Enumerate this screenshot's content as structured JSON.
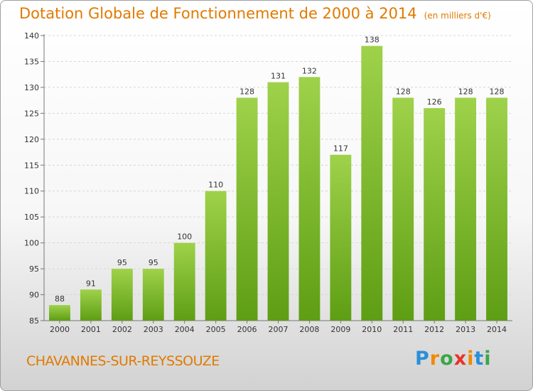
{
  "title": "Dotation Globale de Fonctionnement de 2000 à 2014",
  "unit": "(en milliers d'€)",
  "town": "CHAVANNES-SUR-REYSSOUZE",
  "logo": {
    "letters": [
      "P",
      "r",
      "o",
      "x",
      "i",
      "t",
      "i"
    ],
    "colors": [
      "#2a8fd8",
      "#f08a00",
      "#3aa64a",
      "#e8332a",
      "#f08a00",
      "#2a8fd8",
      "#3aa64a"
    ]
  },
  "colors": {
    "bar_light": "#9ed24a",
    "bar_dark": "#5e9e14",
    "title": "#e07a00"
  },
  "chart_data": {
    "type": "bar",
    "title": "Dotation Globale de Fonctionnement de 2000 à 2014",
    "subtitle": "(en milliers d'€)",
    "xlabel": "",
    "ylabel": "",
    "categories": [
      "2000",
      "2001",
      "2002",
      "2003",
      "2004",
      "2005",
      "2006",
      "2007",
      "2008",
      "2009",
      "2010",
      "2011",
      "2012",
      "2013",
      "2014"
    ],
    "values": [
      88,
      91,
      95,
      95,
      100,
      110,
      128,
      131,
      132,
      117,
      138,
      128,
      126,
      128,
      128
    ],
    "ylim": [
      85,
      140
    ],
    "yticks": [
      85,
      90,
      95,
      100,
      105,
      110,
      115,
      120,
      125,
      130,
      135,
      140
    ],
    "grid": true
  }
}
